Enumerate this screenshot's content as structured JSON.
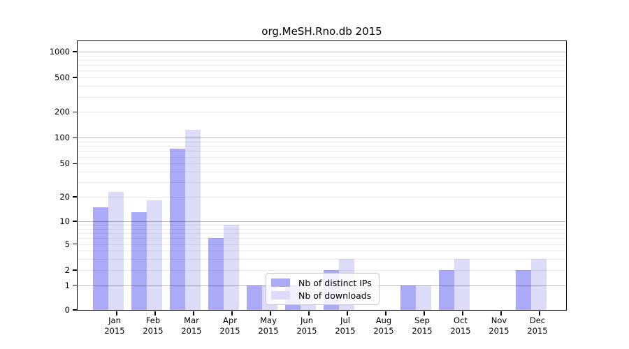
{
  "chart_data": {
    "type": "bar",
    "title": "org.MeSH.Rno.db 2015",
    "categories": [
      "Jan",
      "Feb",
      "Mar",
      "Apr",
      "May",
      "Jun",
      "Jul",
      "Aug",
      "Sep",
      "Oct",
      "Nov",
      "Dec"
    ],
    "x_tick_year_line": "2015",
    "series": [
      {
        "name": "Nb of distinct IPs",
        "color": "#aaaaf7",
        "values": [
          15,
          13,
          74,
          6,
          1,
          1,
          2,
          0,
          1,
          2,
          0,
          2
        ]
      },
      {
        "name": "Nb of downloads",
        "color": "#dcdcf8",
        "values": [
          23,
          18,
          125,
          9,
          1,
          1,
          3,
          0,
          1,
          3,
          0,
          3
        ]
      }
    ],
    "y_ticks": [
      0,
      1,
      2,
      5,
      10,
      20,
      50,
      100,
      200,
      500,
      1000
    ],
    "y_scale": "log10(1+x)",
    "ylim": [
      0,
      1000
    ],
    "grid": true,
    "grid_minor_values": [
      2,
      3,
      4,
      5,
      6,
      7,
      8,
      9,
      20,
      30,
      40,
      50,
      60,
      70,
      80,
      90,
      200,
      300,
      400,
      500,
      600,
      700,
      800,
      900
    ],
    "grid_major_values": [
      1,
      10,
      100,
      1000
    ],
    "legend_position": "inside-bottom-center"
  },
  "colors": {
    "background": "#ffffff",
    "axis": "#000000",
    "grid_minor": "rgba(0,0,0,0.08)",
    "grid_major": "rgba(0,0,0,0.28)",
    "bar_distinct_ips": "#aaaaf7",
    "bar_downloads": "#dcdcf8"
  }
}
